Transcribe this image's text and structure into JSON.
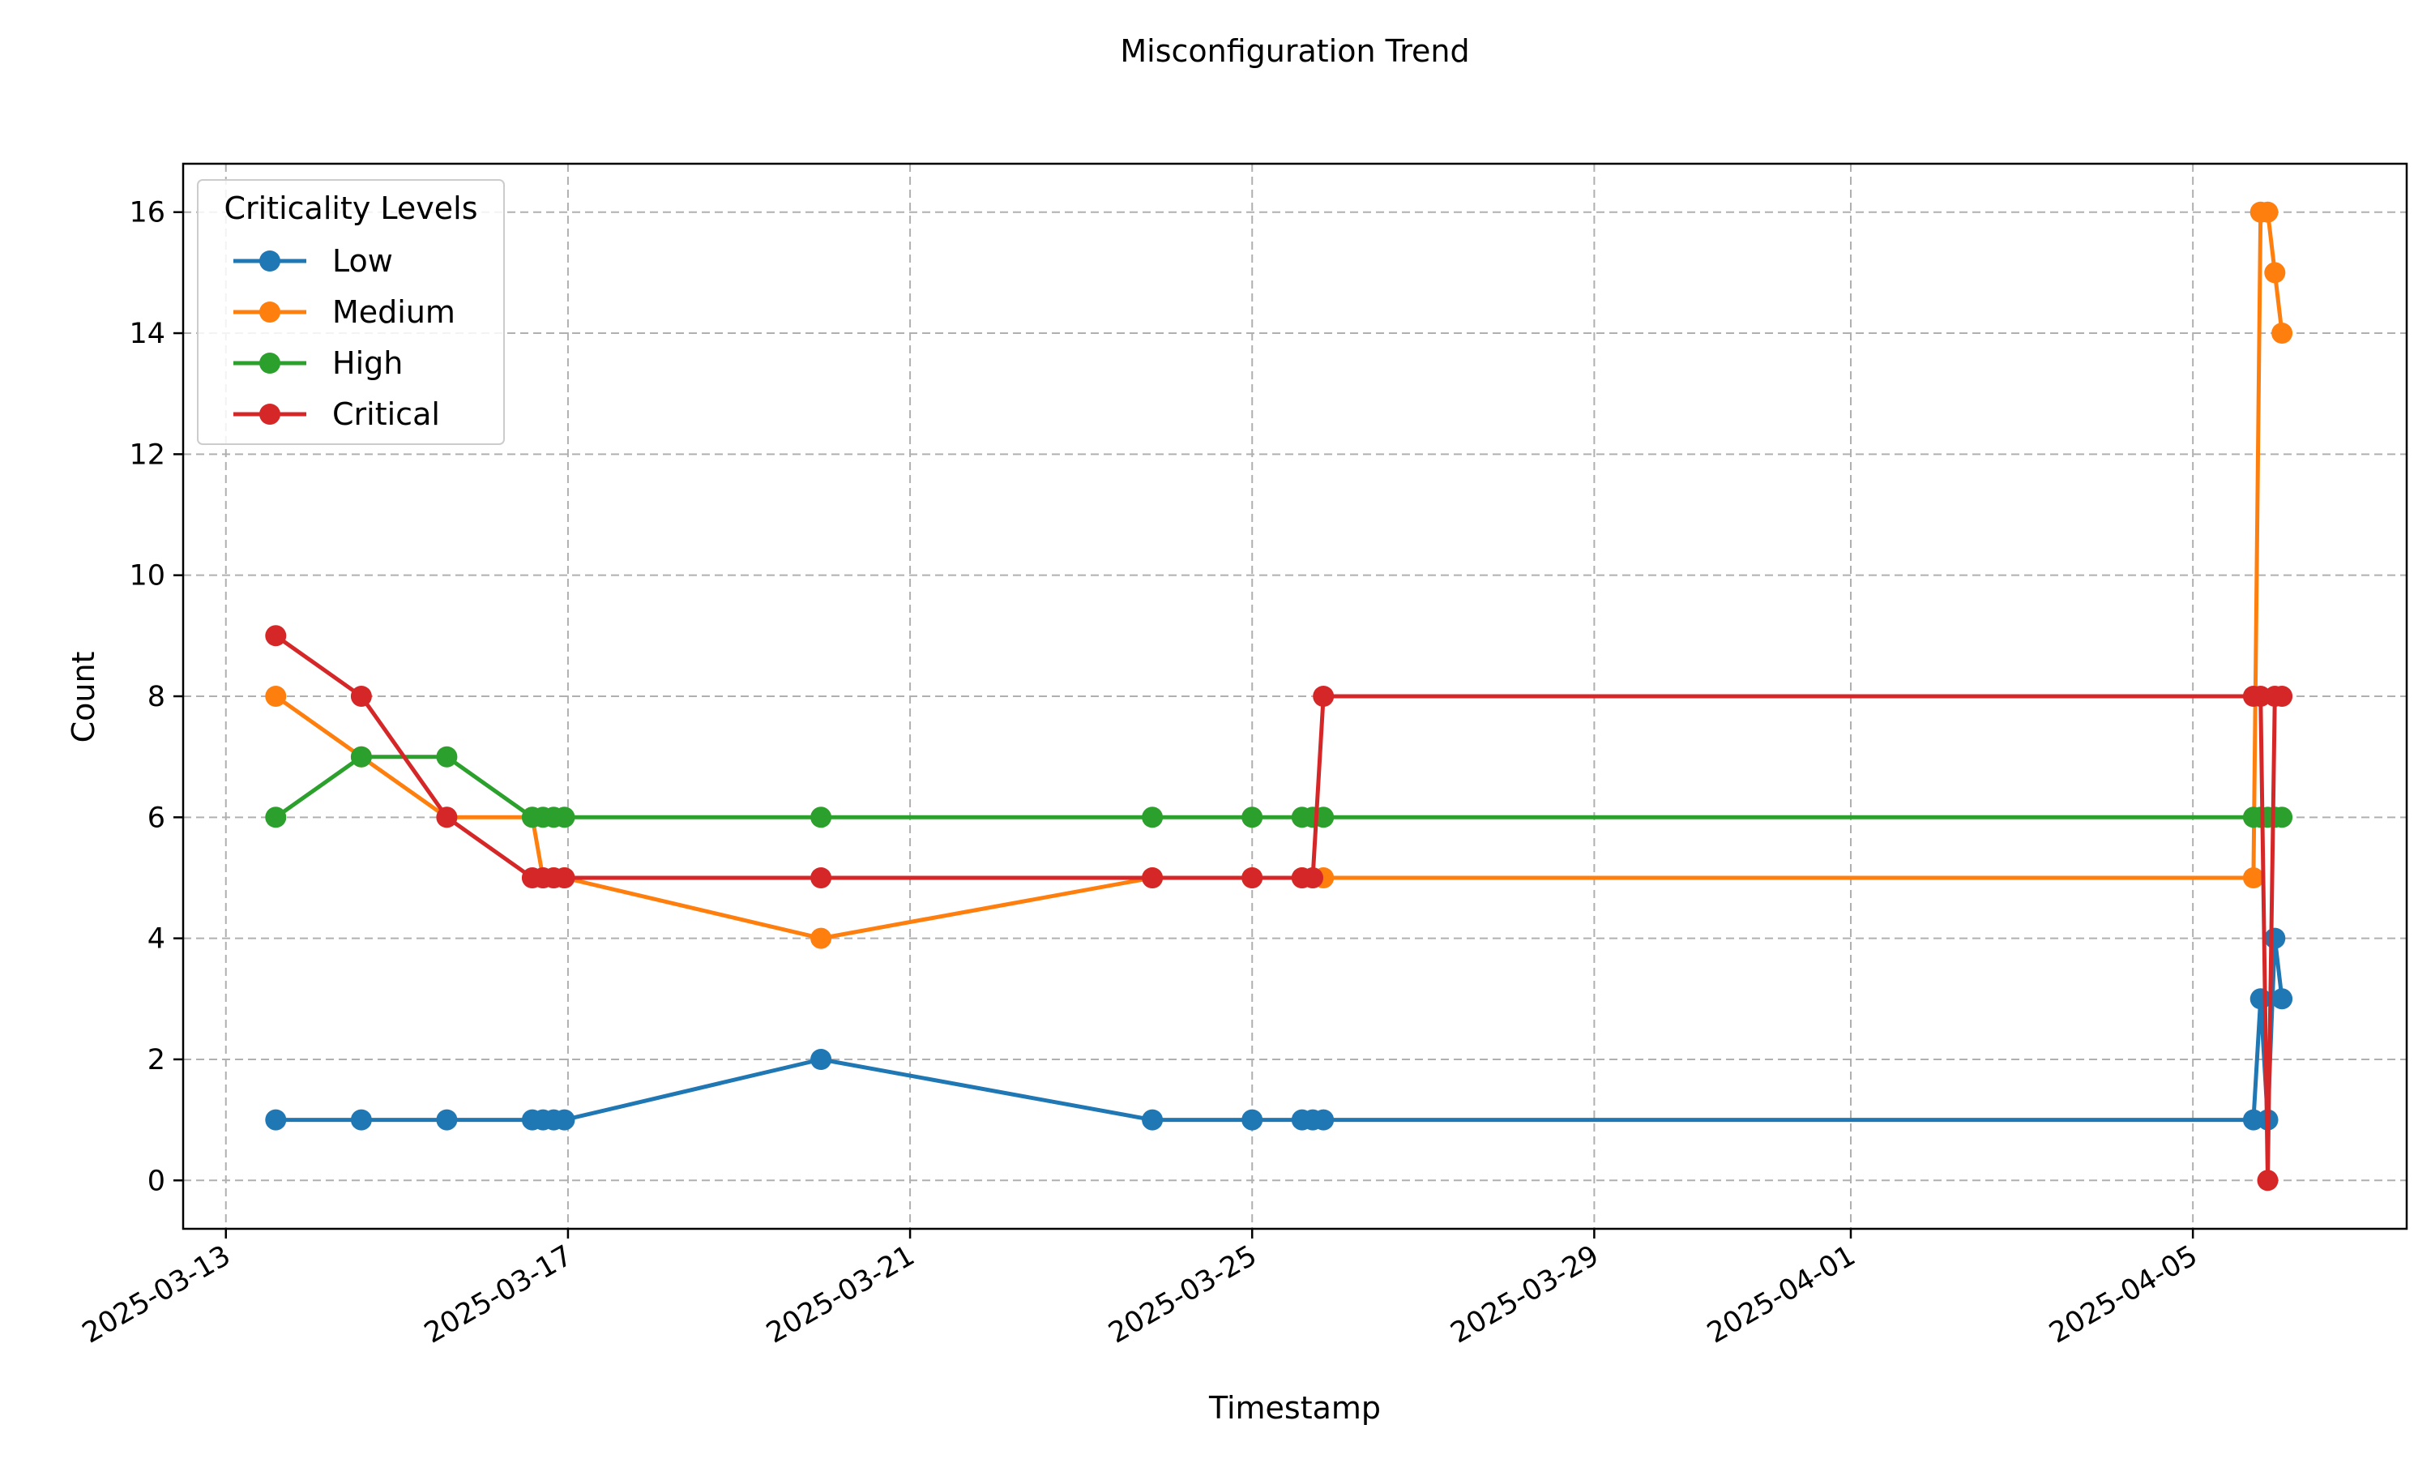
{
  "chart_data": {
    "type": "line",
    "title": "Misconfiguration Trend",
    "xlabel": "Timestamp",
    "ylabel": "Count",
    "x_type": "date",
    "xlim": [
      "2025-03-12T12:00",
      "2025-04-07T12:00"
    ],
    "ylim": [
      -0.8,
      16.8
    ],
    "yticks": [
      0,
      2,
      4,
      6,
      8,
      10,
      12,
      14,
      16
    ],
    "xticks": [
      "2025-03-13",
      "2025-03-17",
      "2025-03-21",
      "2025-03-25",
      "2025-03-29",
      "2025-04-01",
      "2025-04-05"
    ],
    "grid": true,
    "legend": {
      "title": "Criticality Levels",
      "position": "top-left"
    },
    "x": [
      "2025-03-13T14:00",
      "2025-03-14T14:00",
      "2025-03-15T14:00",
      "2025-03-16T14:00",
      "2025-03-16T17:00",
      "2025-03-16T20:00",
      "2025-03-16T23:00",
      "2025-03-19T23:00",
      "2025-03-23T20:00",
      "2025-03-25T00:00",
      "2025-03-25T14:00",
      "2025-03-25T17:00",
      "2025-03-25T20:00",
      "2025-04-05T17:00",
      "2025-04-05T19:00",
      "2025-04-05T21:00",
      "2025-04-05T23:00",
      "2025-04-06T01:00"
    ],
    "series": [
      {
        "name": "Low",
        "color": "#1f77b4",
        "values": [
          1,
          1,
          1,
          1,
          1,
          1,
          1,
          2,
          1,
          1,
          1,
          1,
          1,
          1,
          3,
          1,
          4,
          3
        ]
      },
      {
        "name": "Medium",
        "color": "#ff7f0e",
        "values": [
          8,
          7,
          6,
          6,
          5,
          5,
          5,
          4,
          5,
          5,
          5,
          5,
          5,
          5,
          16,
          16,
          15,
          14
        ]
      },
      {
        "name": "High",
        "color": "#2ca02c",
        "values": [
          6,
          7,
          7,
          6,
          6,
          6,
          6,
          6,
          6,
          6,
          6,
          6,
          6,
          6,
          6,
          6,
          6,
          6
        ]
      },
      {
        "name": "Critical",
        "color": "#d62728",
        "values": [
          9,
          8,
          6,
          5,
          5,
          5,
          5,
          5,
          5,
          5,
          5,
          5,
          8,
          8,
          8,
          0,
          8,
          8
        ]
      }
    ]
  }
}
